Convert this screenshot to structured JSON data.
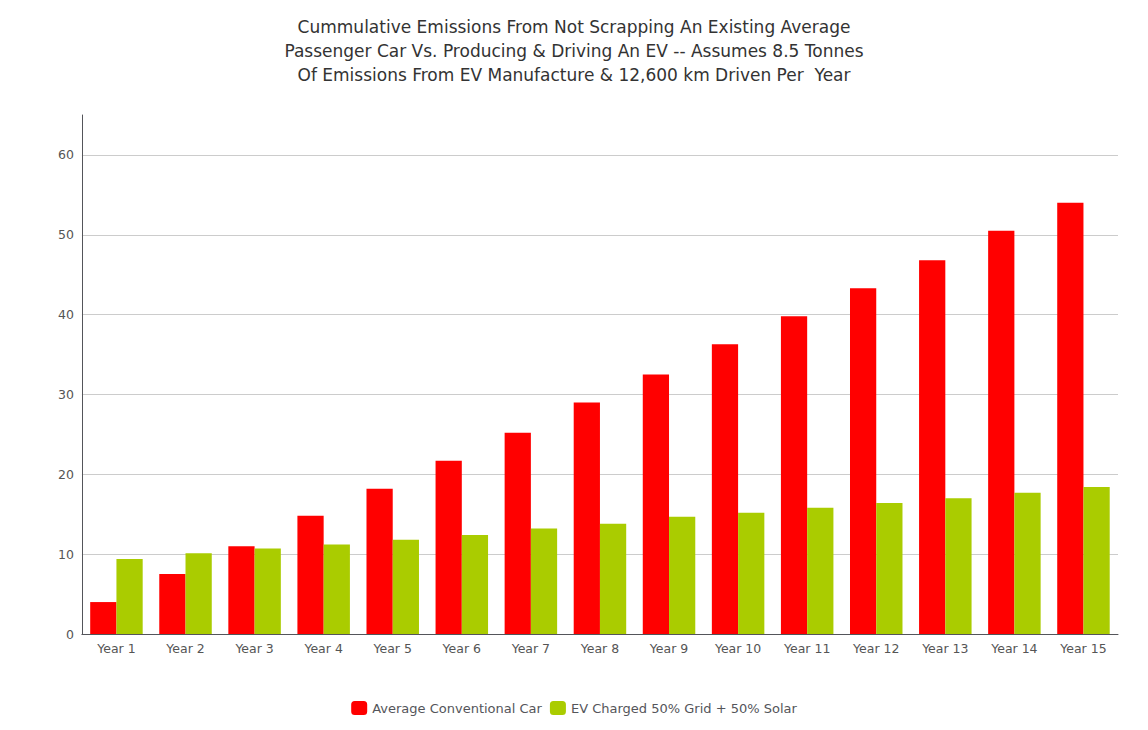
{
  "chart_data": {
    "type": "bar",
    "title": "Cummulative Emissions From Not Scrapping An Existing Average\nPassenger Car Vs. Producing & Driving An EV -- Assumes 8.5 Tonnes\nOf Emissions From EV Manufacture & 12,600 km Driven Per  Year",
    "categories": [
      "Year 1",
      "Year 2",
      "Year 3",
      "Year 4",
      "Year 5",
      "Year 6",
      "Year 7",
      "Year 8",
      "Year 9",
      "Year 10",
      "Year 11",
      "Year 12",
      "Year 13",
      "Year 14",
      "Year 15"
    ],
    "series": [
      {
        "name": "Average Conventional Car",
        "color": "#FF0000",
        "values": [
          4.0,
          7.5,
          11.0,
          14.8,
          18.2,
          21.7,
          25.2,
          29.0,
          32.5,
          36.3,
          39.8,
          43.3,
          46.8,
          50.5,
          54.0
        ]
      },
      {
        "name": "EV Charged 50% Grid + 50% Solar",
        "color": "#AACC00",
        "values": [
          9.4,
          10.1,
          10.7,
          11.2,
          11.8,
          12.4,
          13.2,
          13.8,
          14.7,
          15.2,
          15.8,
          16.4,
          17.0,
          17.7,
          18.4
        ]
      }
    ],
    "ylim": [
      0,
      65
    ],
    "yticks": [
      0,
      10,
      20,
      30,
      40,
      50,
      60
    ],
    "grid": true,
    "legend": "bottom"
  }
}
